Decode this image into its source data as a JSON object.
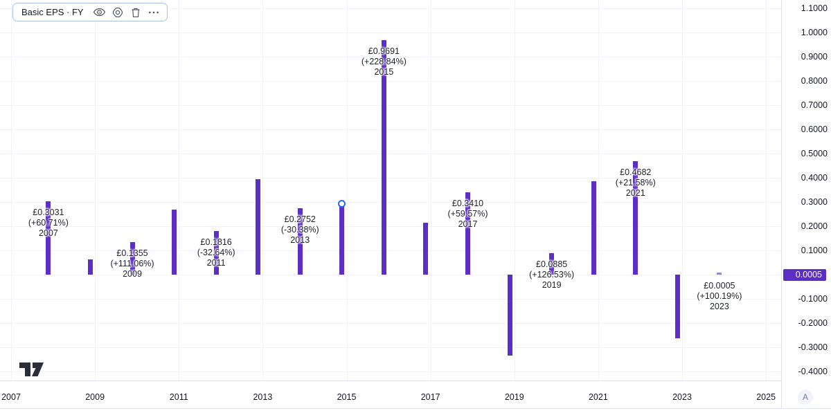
{
  "legend": {
    "title": "Basic EPS · FY",
    "buttons": [
      {
        "name": "hide",
        "icon": "eye-icon"
      },
      {
        "name": "settings",
        "icon": "gear-icon"
      },
      {
        "name": "delete",
        "icon": "trash-icon"
      },
      {
        "name": "more",
        "icon": "ellipsis-icon"
      }
    ]
  },
  "colors": {
    "bar": "#5d2ec6",
    "bar_faint": "#9b84dd",
    "grid": "#f0f3fa",
    "axis_text": "#131722",
    "axis_border": "#e0e3eb",
    "marker_ring": "#2962ff",
    "badge_bg": "#5d2ec6",
    "badge_text": "#ffffff",
    "legend_border": "#a9c0f5",
    "icon": "#4a4e59",
    "logo": "#2a2e39",
    "a_button_bg": "#f0f3fa",
    "a_button_text": "#787b86"
  },
  "chart_data": {
    "type": "bar",
    "title": "Basic EPS · FY",
    "currency_prefix": "£",
    "ylim": [
      -0.45,
      1.155
    ],
    "xlim_years": [
      2006.74,
      2025.36
    ],
    "bar_offset_years": 0.89,
    "grid": true,
    "y_ticks": [
      {
        "value": 1.1,
        "label": "1.1000"
      },
      {
        "value": 1.0,
        "label": "1.0000"
      },
      {
        "value": 0.9,
        "label": "0.9000"
      },
      {
        "value": 0.8,
        "label": "0.8000"
      },
      {
        "value": 0.7,
        "label": "0.7000"
      },
      {
        "value": 0.6,
        "label": "0.6000"
      },
      {
        "value": 0.5,
        "label": "0.5000"
      },
      {
        "value": 0.4,
        "label": "0.4000"
      },
      {
        "value": 0.3,
        "label": "0.3000"
      },
      {
        "value": 0.2,
        "label": "0.2000"
      },
      {
        "value": 0.1,
        "label": "0.1000"
      },
      {
        "value": 0.0,
        "label": ""
      },
      {
        "value": -0.1,
        "label": "-0.1000"
      },
      {
        "value": -0.2,
        "label": "-0.2000"
      },
      {
        "value": -0.3,
        "label": "-0.3000"
      },
      {
        "value": -0.4,
        "label": "-0.4000"
      }
    ],
    "x_ticks": [
      {
        "year": 2007,
        "label": "2007"
      },
      {
        "year": 2009,
        "label": "2009"
      },
      {
        "year": 2011,
        "label": "2011"
      },
      {
        "year": 2013,
        "label": "2013"
      },
      {
        "year": 2015,
        "label": "2015"
      },
      {
        "year": 2017,
        "label": "2017"
      },
      {
        "year": 2019,
        "label": "2019"
      },
      {
        "year": 2021,
        "label": "2021"
      },
      {
        "year": 2023,
        "label": "2023"
      },
      {
        "year": 2025,
        "label": "2025"
      }
    ],
    "bars": [
      {
        "year": 2007,
        "value": 0.3031,
        "label_value": "£0.3031",
        "label_change": "(+60.71%)",
        "label_year": "2007"
      },
      {
        "year": 2008,
        "value": 0.0642
      },
      {
        "year": 2009,
        "value": 0.1355,
        "label_value": "£0.1355",
        "label_change": "(+111.06%)",
        "label_year": "2009"
      },
      {
        "year": 2010,
        "value": 0.2696
      },
      {
        "year": 2011,
        "value": 0.1816,
        "label_value": "£0.1816",
        "label_change": "(-32.64%)",
        "label_year": "2011"
      },
      {
        "year": 2012,
        "value": 0.3953
      },
      {
        "year": 2013,
        "value": 0.2752,
        "label_value": "£0.2752",
        "label_change": "(-30.38%)",
        "label_year": "2013"
      },
      {
        "year": 2014,
        "value": 0.2947
      },
      {
        "year": 2015,
        "value": 0.9691,
        "label_value": "£0.9691",
        "label_change": "(+228.84%)",
        "label_year": "2015"
      },
      {
        "year": 2016,
        "value": 0.2137
      },
      {
        "year": 2017,
        "value": 0.341,
        "label_value": "£0.3410",
        "label_change": "(+59.57%)",
        "label_year": "2017"
      },
      {
        "year": 2018,
        "value": -0.3336
      },
      {
        "year": 2019,
        "value": 0.0885,
        "label_value": "£0.0885",
        "label_change": "(+126.53%)",
        "label_year": "2019"
      },
      {
        "year": 2020,
        "value": 0.3851
      },
      {
        "year": 2021,
        "value": 0.4682,
        "label_value": "£0.4682",
        "label_change": "(+21.58%)",
        "label_year": "2021"
      },
      {
        "year": 2022,
        "value": -0.2632
      },
      {
        "year": 2023,
        "value": 0.0005,
        "label_value": "£0.0005",
        "label_change": "(+100.19%)",
        "label_year": "2023"
      }
    ],
    "marker": {
      "year": 2014,
      "value": 0.2947
    },
    "last_value_badge": {
      "label": "0.0005",
      "value": 0.0005
    }
  },
  "footer": {
    "a_button_label": "A"
  }
}
